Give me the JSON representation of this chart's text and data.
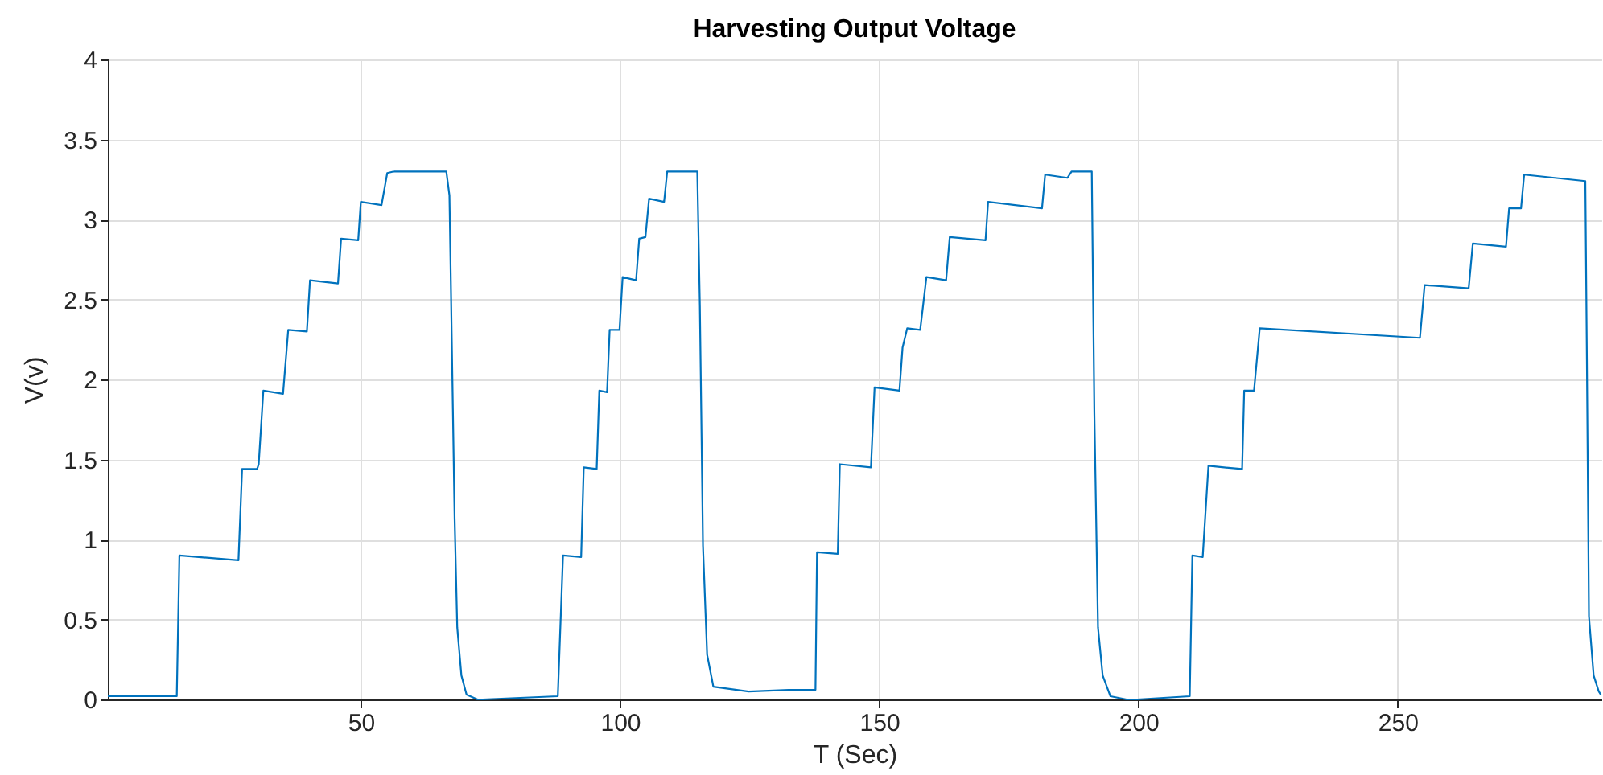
{
  "chart_data": {
    "type": "line",
    "title": "Harvesting Output Voltage",
    "xlabel": "T (Sec)",
    "ylabel": "V(v)",
    "x": [
      1.2,
      14.5,
      15.0,
      26.4,
      27.1,
      30.0,
      30.3,
      31.2,
      35.0,
      36.0,
      39.6,
      40.2,
      45.6,
      46.2,
      49.5,
      50.0,
      54.0,
      55.1,
      56.4,
      66.5,
      67.1,
      68.1,
      68.6,
      69.4,
      70.4,
      72.5,
      73.5,
      88.0,
      89.0,
      92.5,
      93.0,
      95.5,
      96.0,
      97.5,
      98.0,
      99.9,
      100.5,
      103.1,
      103.7,
      104.9,
      105.6,
      108.5,
      109.1,
      114.9,
      115.4,
      116.0,
      116.8,
      118.0,
      124.8,
      132.5,
      137.7,
      138.0,
      142.0,
      142.4,
      148.4,
      149.1,
      153.9,
      154.5,
      155.4,
      157.9,
      159.1,
      162.9,
      163.6,
      170.5,
      171.0,
      181.4,
      182.0,
      186.3,
      187.1,
      191.0,
      191.5,
      192.2,
      193.1,
      194.6,
      197.7,
      199.8,
      209.9,
      210.4,
      212.4,
      213.5,
      220.0,
      220.4,
      222.3,
      223.4,
      254.3,
      255.2,
      263.7,
      264.5,
      270.9,
      271.5,
      273.8,
      274.4,
      286.2,
      286.5,
      286.9,
      287.8,
      288.8,
      289.2
    ],
    "series": [
      {
        "color": "#0072bd",
        "values": [
          0.02,
          0.02,
          0.9,
          0.87,
          1.44,
          1.44,
          1.47,
          1.93,
          1.91,
          2.31,
          2.3,
          2.62,
          2.6,
          2.88,
          2.87,
          3.11,
          3.09,
          3.29,
          3.3,
          3.3,
          3.15,
          1.13,
          0.45,
          0.15,
          0.03,
          0.0,
          0.0,
          0.02,
          0.9,
          0.89,
          1.45,
          1.44,
          1.93,
          1.92,
          2.31,
          2.31,
          2.64,
          2.62,
          2.88,
          2.89,
          3.13,
          3.11,
          3.3,
          3.3,
          2.46,
          0.96,
          0.28,
          0.08,
          0.05,
          0.06,
          0.06,
          0.92,
          0.91,
          1.47,
          1.45,
          1.95,
          1.93,
          2.2,
          2.32,
          2.31,
          2.64,
          2.62,
          2.89,
          2.87,
          3.11,
          3.07,
          3.28,
          3.26,
          3.3,
          3.3,
          1.79,
          0.45,
          0.15,
          0.02,
          0.0,
          0.0,
          0.02,
          0.9,
          0.89,
          1.46,
          1.44,
          1.93,
          1.93,
          2.32,
          2.26,
          2.59,
          2.57,
          2.85,
          2.83,
          3.07,
          3.07,
          3.28,
          3.24,
          2.13,
          0.52,
          0.15,
          0.05,
          0.03
        ]
      }
    ],
    "xlim": [
      1.2,
      289.3
    ],
    "xticks": [
      50,
      100,
      150,
      200,
      250
    ],
    "ylim": [
      0,
      4
    ],
    "yticks": [
      0,
      0.5,
      1,
      1.5,
      2,
      2.5,
      3,
      3.5,
      4
    ],
    "grid": true,
    "marker": "none",
    "line_style": "solid"
  }
}
